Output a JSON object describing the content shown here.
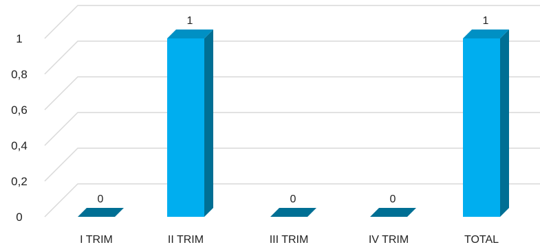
{
  "chart_data": {
    "type": "bar",
    "style": "3d-column",
    "categories": [
      "I TRIM",
      "II TRIM",
      "III TRIM",
      "IV TRIM",
      "TOTAL"
    ],
    "series": [
      {
        "values": [
          0,
          1,
          0,
          0,
          1
        ]
      }
    ],
    "data_labels": [
      "0",
      "1",
      "0",
      "0",
      "1"
    ],
    "ylim": [
      0,
      1
    ],
    "y_ticks": [
      "0",
      "0,2",
      "0,4",
      "0,6",
      "0,8",
      "1"
    ],
    "y_tick_values": [
      0,
      0.2,
      0.4,
      0.6,
      0.8,
      1
    ],
    "title": "",
    "xlabel": "",
    "ylabel": "",
    "grid": true,
    "legend": "none",
    "colors": {
      "bar_front": "#00aeef",
      "bar_side": "#006f94",
      "bar_top": "#0090c4",
      "grid": "#d9d9d9"
    }
  }
}
